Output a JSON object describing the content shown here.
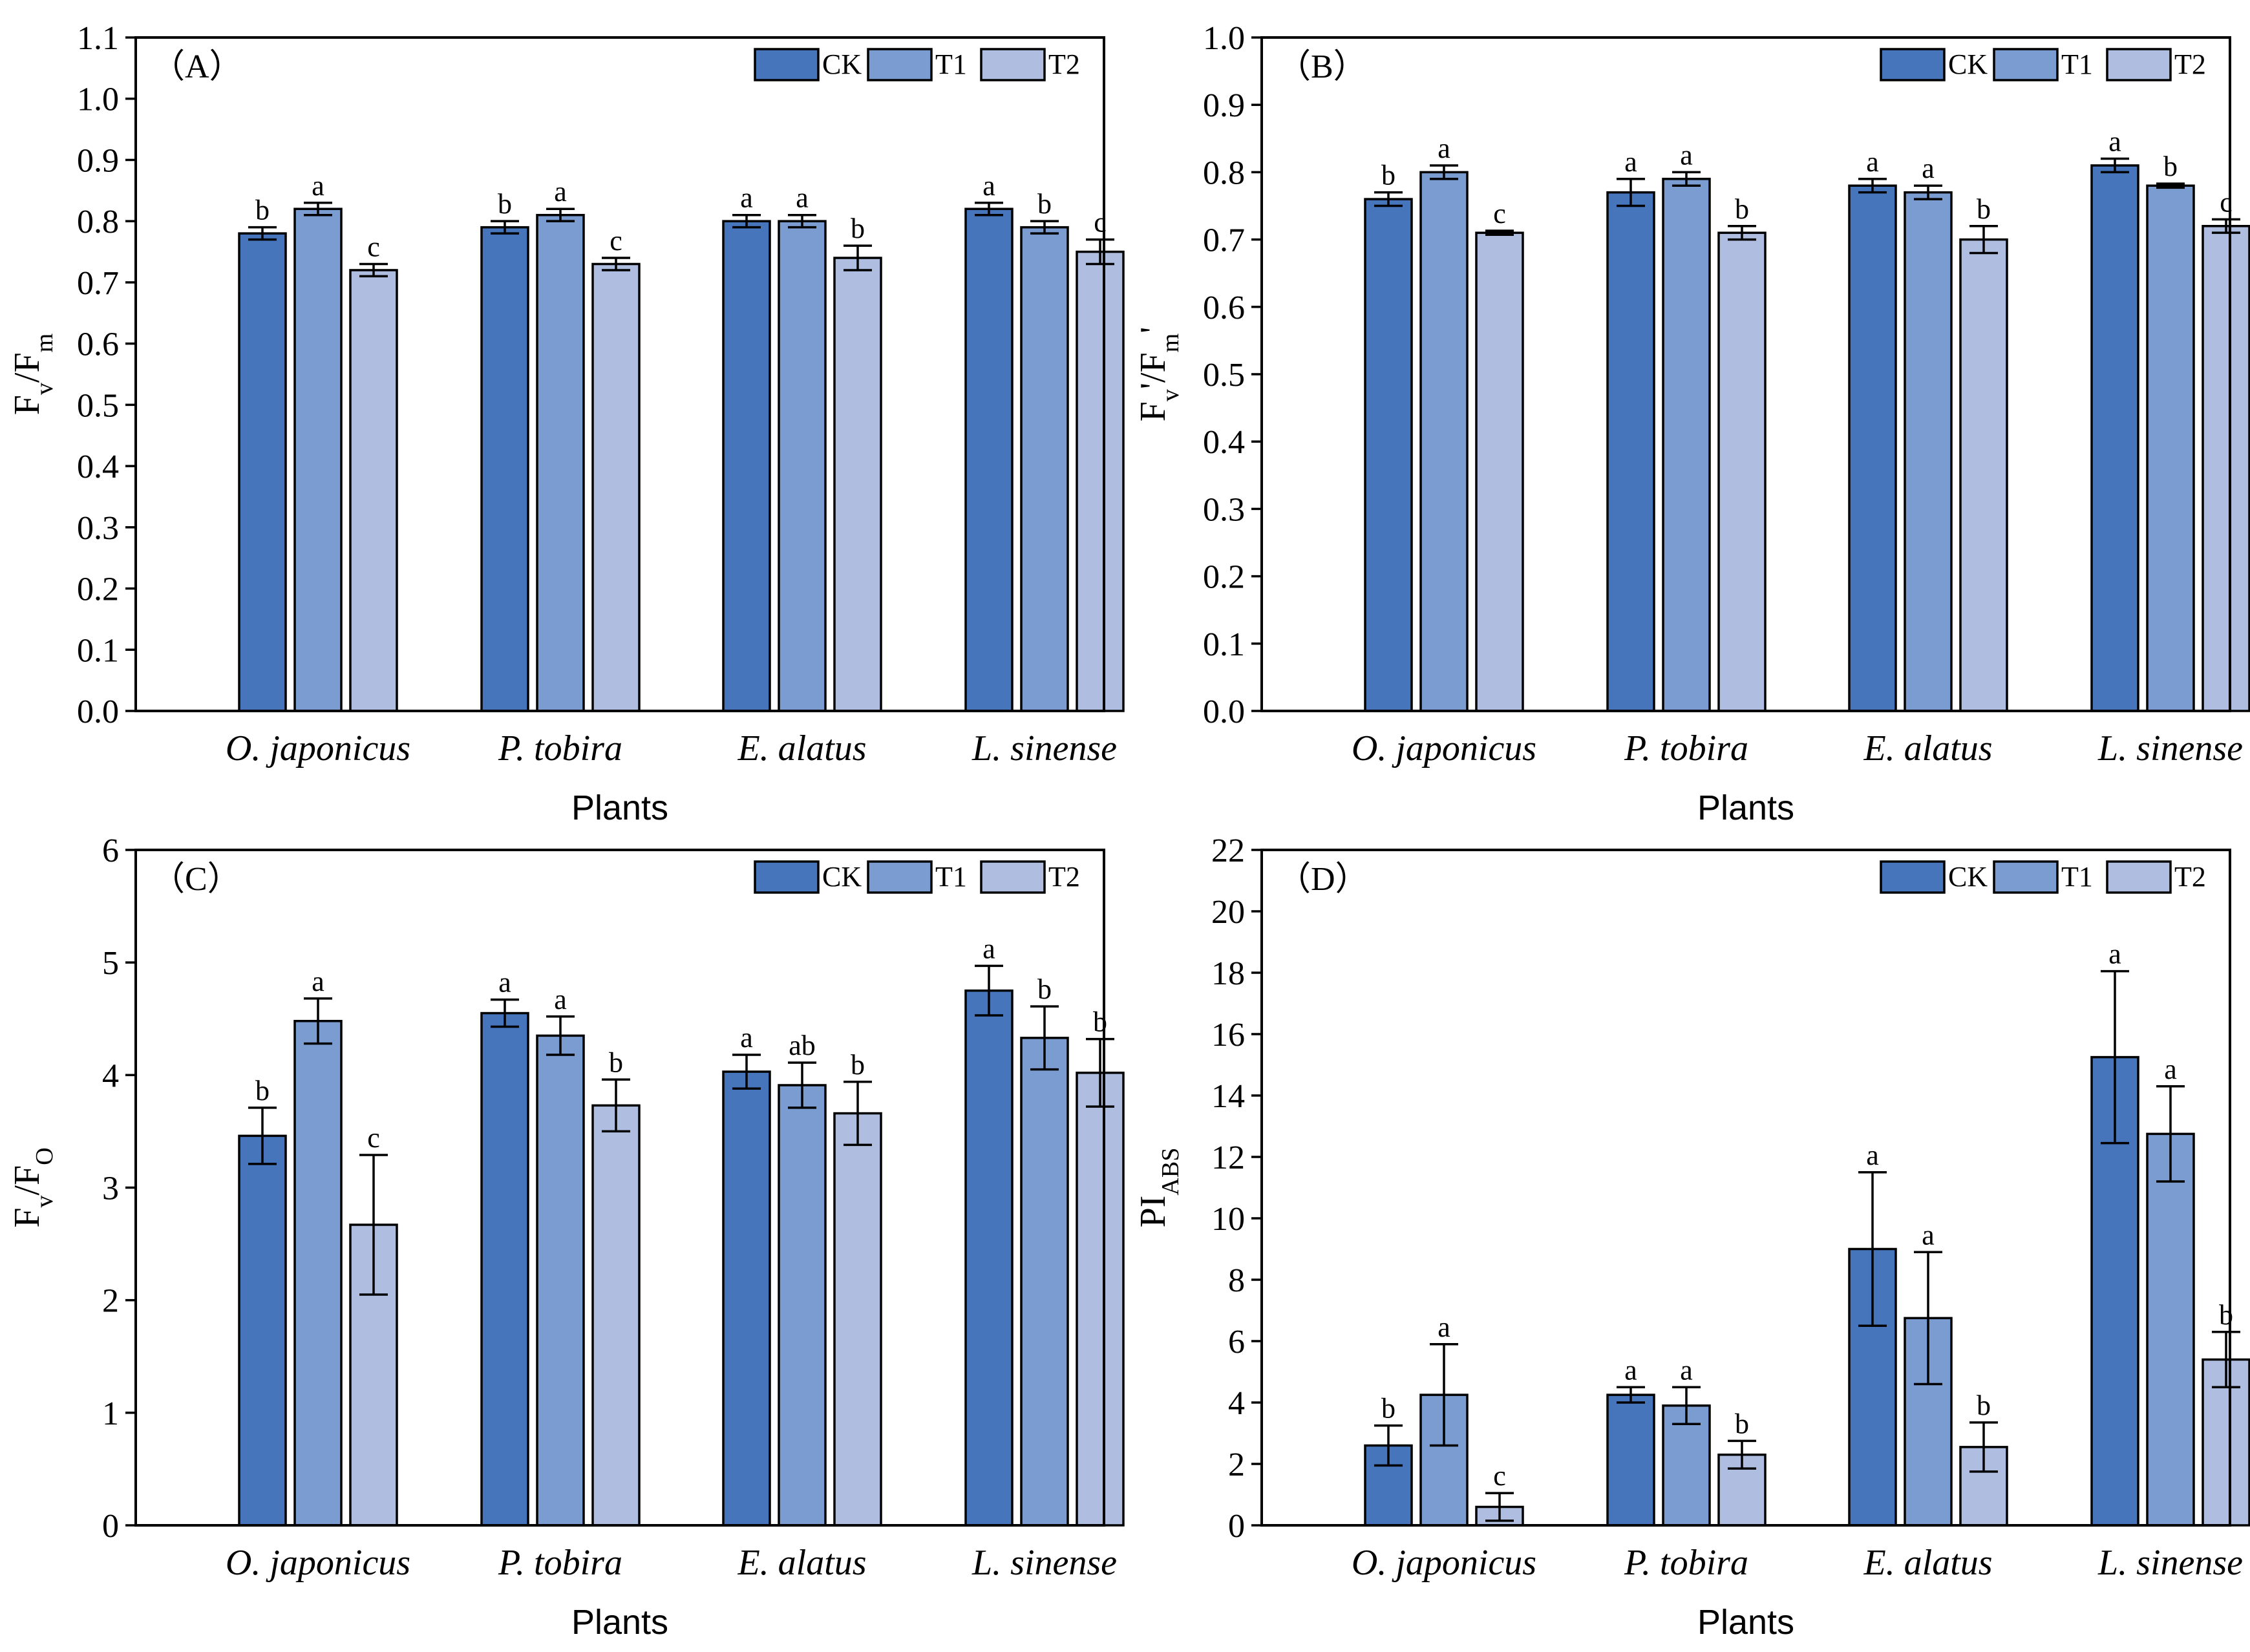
{
  "x_axis_label": "Plants",
  "chart_data": [
    {
      "type": "bar",
      "panel_label": "（A）",
      "ylabel_main": "F",
      "ylabel_sub1": "v",
      "ylabel_mid": "/F",
      "ylabel_sub2": "m",
      "ylim": [
        0,
        1.1
      ],
      "ytick_step": 0.1,
      "ytick_decimals": 1,
      "legend": [
        "CK",
        "T1",
        "T2"
      ],
      "colors": [
        "#4675BC",
        "#7B9CD0",
        "#AFBEE0"
      ],
      "categories": [
        "O. japonicus",
        "P. tobira",
        "E. alatus",
        "L. sinense"
      ],
      "series": [
        {
          "name": "CK",
          "values": [
            0.78,
            0.79,
            0.8,
            0.82
          ],
          "errors": [
            0.01,
            0.01,
            0.01,
            0.01
          ],
          "letters": [
            "b",
            "b",
            "a",
            "a"
          ]
        },
        {
          "name": "T1",
          "values": [
            0.82,
            0.81,
            0.8,
            0.79
          ],
          "errors": [
            0.01,
            0.01,
            0.01,
            0.01
          ],
          "letters": [
            "a",
            "a",
            "a",
            "b"
          ]
        },
        {
          "name": "T2",
          "values": [
            0.72,
            0.73,
            0.74,
            0.75
          ],
          "errors": [
            0.01,
            0.01,
            0.02,
            0.02
          ],
          "letters": [
            "c",
            "c",
            "b",
            "c"
          ]
        }
      ]
    },
    {
      "type": "bar",
      "panel_label": "（B）",
      "ylabel_main": "F",
      "ylabel_sub1": "v",
      "ylabel_mid": "'/F",
      "ylabel_sub2": "m",
      "ylabel_tail": "'",
      "ylim": [
        0,
        1.0
      ],
      "ytick_step": 0.1,
      "ytick_decimals": 1,
      "legend": [
        "CK",
        "T1",
        "T2"
      ],
      "colors": [
        "#4675BC",
        "#7B9CD0",
        "#AFBEE0"
      ],
      "categories": [
        "O. japonicus",
        "P. tobira",
        "E. alatus",
        "L. sinense"
      ],
      "series": [
        {
          "name": "CK",
          "values": [
            0.76,
            0.77,
            0.78,
            0.81
          ],
          "errors": [
            0.01,
            0.02,
            0.01,
            0.01
          ],
          "letters": [
            "b",
            "a",
            "a",
            "a"
          ]
        },
        {
          "name": "T1",
          "values": [
            0.8,
            0.79,
            0.77,
            0.78
          ],
          "errors": [
            0.01,
            0.01,
            0.01,
            0.003
          ],
          "letters": [
            "a",
            "a",
            "a",
            "b"
          ]
        },
        {
          "name": "T2",
          "values": [
            0.71,
            0.71,
            0.7,
            0.72
          ],
          "errors": [
            0.003,
            0.01,
            0.02,
            0.01
          ],
          "letters": [
            "c",
            "b",
            "b",
            "c"
          ]
        }
      ]
    },
    {
      "type": "bar",
      "panel_label": "（C）",
      "ylabel_main": "F",
      "ylabel_sub1": "v",
      "ylabel_mid": "/F",
      "ylabel_sub2": "O",
      "ylim": [
        0,
        6
      ],
      "ytick_step": 1,
      "ytick_decimals": 0,
      "legend": [
        "CK",
        "T1",
        "T2"
      ],
      "colors": [
        "#4675BC",
        "#7B9CD0",
        "#AFBEE0"
      ],
      "categories": [
        "O. japonicus",
        "P. tobira",
        "E. alatus",
        "L. sinense"
      ],
      "series": [
        {
          "name": "CK",
          "values": [
            3.46,
            4.55,
            4.03,
            4.75
          ],
          "errors": [
            0.25,
            0.12,
            0.15,
            0.22
          ],
          "letters": [
            "b",
            "a",
            "a",
            "a"
          ]
        },
        {
          "name": "T1",
          "values": [
            4.48,
            4.35,
            3.91,
            4.33
          ],
          "errors": [
            0.2,
            0.17,
            0.2,
            0.28
          ],
          "letters": [
            "a",
            "a",
            "ab",
            "b"
          ]
        },
        {
          "name": "T2",
          "values": [
            2.67,
            3.73,
            3.66,
            4.02
          ],
          "errors": [
            0.62,
            0.23,
            0.28,
            0.3
          ],
          "letters": [
            "c",
            "b",
            "b",
            "b"
          ]
        }
      ]
    },
    {
      "type": "bar",
      "panel_label": "（D）",
      "ylabel_main": "PI",
      "ylabel_sub1": "ABS",
      "ylim": [
        0,
        22
      ],
      "ytick_step": 2,
      "ytick_decimals": 0,
      "legend": [
        "CK",
        "T1",
        "T2"
      ],
      "colors": [
        "#4675BC",
        "#7B9CD0",
        "#AFBEE0"
      ],
      "categories": [
        "O. japonicus",
        "P. tobira",
        "E. alatus",
        "L. sinense"
      ],
      "series": [
        {
          "name": "CK",
          "values": [
            2.6,
            4.25,
            9.0,
            15.25
          ],
          "errors": [
            0.65,
            0.25,
            2.5,
            2.8
          ],
          "letters": [
            "b",
            "a",
            "a",
            "a"
          ]
        },
        {
          "name": "T1",
          "values": [
            4.25,
            3.9,
            6.75,
            12.75
          ],
          "errors": [
            1.65,
            0.6,
            2.15,
            1.55
          ],
          "letters": [
            "a",
            "a",
            "a",
            "a"
          ]
        },
        {
          "name": "T2",
          "values": [
            0.6,
            2.3,
            2.55,
            5.4
          ],
          "errors": [
            0.45,
            0.45,
            0.8,
            0.9
          ],
          "letters": [
            "c",
            "b",
            "b",
            "b"
          ]
        }
      ]
    }
  ]
}
